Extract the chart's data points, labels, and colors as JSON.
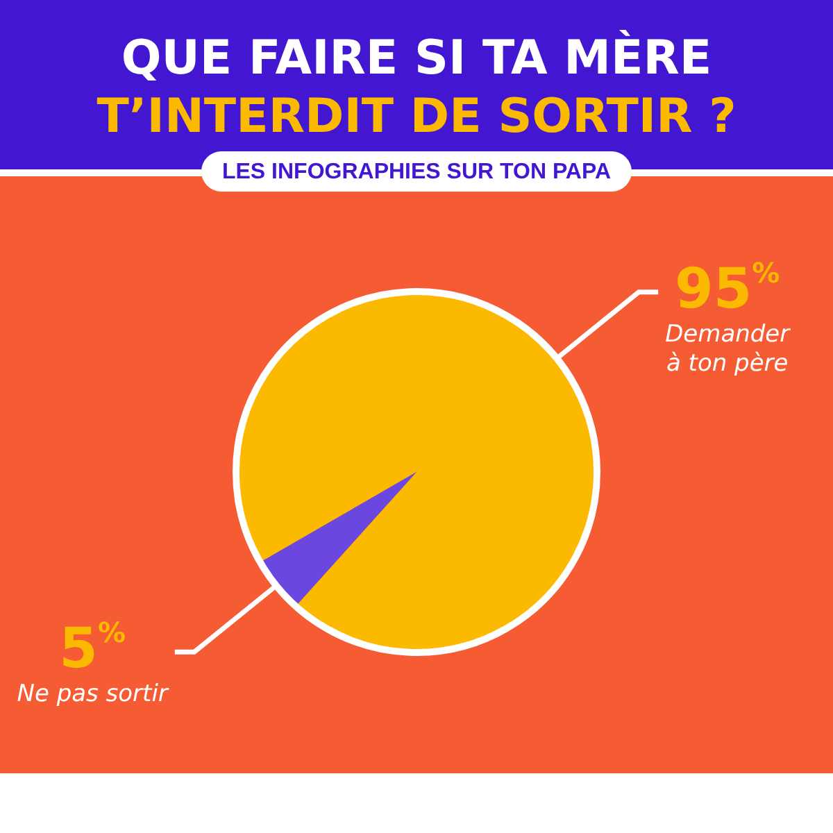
{
  "chart_data": {
    "type": "pie",
    "title": "QUE FAIRE SI TA MÈRE\nT’INTERDIT DE SORTIR ?",
    "subtitle": "LES INFOGRAPHIES SUR TON PAPA",
    "categories": [
      "Demander à ton père",
      "Ne pas sortir"
    ],
    "values": [
      95,
      5
    ],
    "colors": [
      "#fbb900",
      "#6a48e0"
    ],
    "value_labels": [
      "95$^{%}$",
      "5$^{%}$"
    ]
  }
}
